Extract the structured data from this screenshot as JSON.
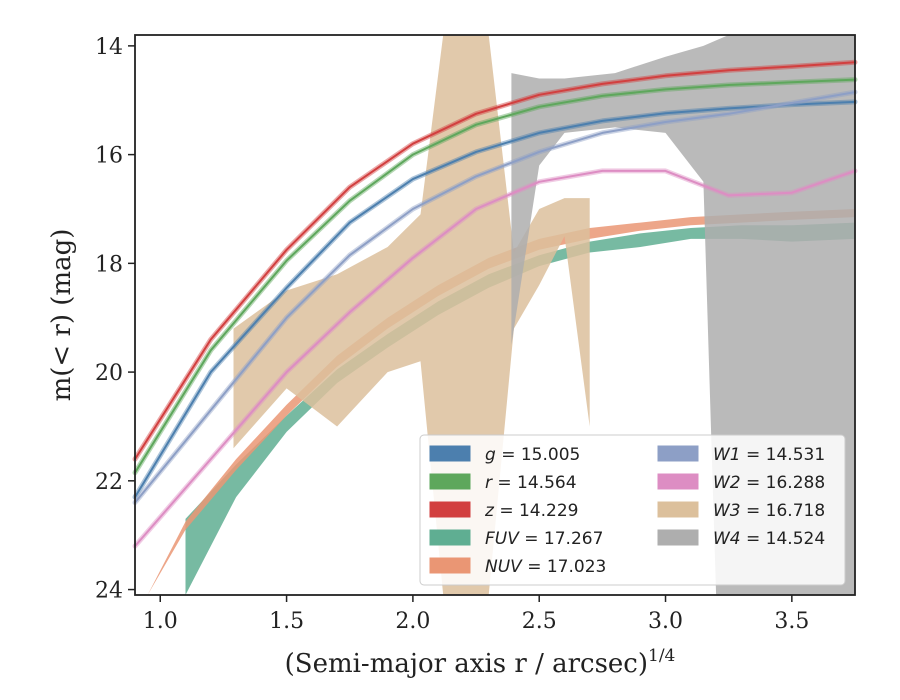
{
  "chart_data": {
    "type": "line",
    "xlabel": "(Semi-major axis r / arcsec)",
    "xlabel_exponent": "1/4",
    "ylabel": "m(< r) (mag)",
    "xlim": [
      0.9,
      3.75
    ],
    "ylim": [
      24.1,
      13.8
    ],
    "y_inverted": true,
    "x_ticks": [
      1.0,
      1.5,
      2.0,
      2.5,
      3.0,
      3.5
    ],
    "y_ticks": [
      14,
      16,
      18,
      20,
      22,
      24
    ],
    "x_tick_labels": [
      "1.0",
      "1.5",
      "2.0",
      "2.5",
      "3.0",
      "3.5"
    ],
    "y_tick_labels": [
      "14",
      "16",
      "18",
      "20",
      "22",
      "24"
    ],
    "grid": false,
    "legend_position": "lower-right",
    "series": [
      {
        "name": "g",
        "label": "g = 15.005",
        "color": "#4c7fae",
        "style": "model-band",
        "x": [
          0.9,
          1.2,
          1.5,
          1.75,
          2.0,
          2.25,
          2.5,
          2.75,
          3.0,
          3.25,
          3.5,
          3.75
        ],
        "y": [
          22.3,
          20.0,
          18.45,
          17.25,
          16.45,
          15.95,
          15.6,
          15.38,
          15.24,
          15.15,
          15.08,
          15.03
        ]
      },
      {
        "name": "r",
        "label": "r = 14.564",
        "color": "#5ea75c",
        "style": "model-band",
        "x": [
          0.9,
          1.2,
          1.5,
          1.75,
          2.0,
          2.25,
          2.5,
          2.75,
          3.0,
          3.25,
          3.5,
          3.75
        ],
        "y": [
          21.85,
          19.6,
          17.95,
          16.85,
          16.0,
          15.45,
          15.12,
          14.92,
          14.8,
          14.72,
          14.67,
          14.62
        ]
      },
      {
        "name": "z",
        "label": "z = 14.229",
        "color": "#d23f3f",
        "style": "model-band",
        "x": [
          0.9,
          1.2,
          1.5,
          1.75,
          2.0,
          2.25,
          2.5,
          2.75,
          3.0,
          3.25,
          3.5,
          3.75
        ],
        "y": [
          21.6,
          19.4,
          17.75,
          16.6,
          15.8,
          15.25,
          14.9,
          14.7,
          14.55,
          14.45,
          14.38,
          14.3
        ]
      },
      {
        "name": "FUV",
        "label": "FUV = 17.267",
        "color": "#5fae92",
        "style": "band",
        "x": [
          1.1,
          1.3,
          1.5,
          1.7,
          1.9,
          2.1,
          2.3,
          2.5,
          2.7,
          2.9,
          3.1,
          3.3,
          3.5,
          3.75
        ],
        "y_low": [
          22.7,
          21.7,
          20.8,
          19.95,
          19.3,
          18.7,
          18.2,
          17.85,
          17.6,
          17.45,
          17.35,
          17.3,
          17.3,
          17.25
        ],
        "y_high": [
          24.2,
          22.3,
          21.1,
          20.2,
          19.55,
          18.95,
          18.45,
          18.05,
          17.8,
          17.7,
          17.55,
          17.55,
          17.6,
          17.55
        ]
      },
      {
        "name": "NUV",
        "label": "NUV = 17.023",
        "color": "#ea9674",
        "style": "band",
        "x": [
          0.95,
          1.1,
          1.3,
          1.5,
          1.7,
          1.9,
          2.1,
          2.3,
          2.5,
          2.7,
          2.9,
          3.1,
          3.3,
          3.5,
          3.75
        ],
        "y_low": [
          24.2,
          22.75,
          21.6,
          20.6,
          19.7,
          19.0,
          18.4,
          17.9,
          17.55,
          17.35,
          17.25,
          17.15,
          17.1,
          17.05,
          17.0
        ],
        "y_high": [
          24.3,
          22.9,
          21.8,
          20.8,
          19.9,
          19.2,
          18.6,
          18.1,
          17.75,
          17.55,
          17.4,
          17.3,
          17.25,
          17.2,
          17.15
        ]
      },
      {
        "name": "W1",
        "label": "W1 = 14.531",
        "color": "#8d9fc6",
        "style": "model-band",
        "x": [
          0.9,
          1.2,
          1.5,
          1.75,
          2.0,
          2.25,
          2.5,
          2.75,
          3.0,
          3.25,
          3.5,
          3.75
        ],
        "y": [
          22.4,
          20.7,
          19.0,
          17.85,
          17.0,
          16.4,
          15.95,
          15.6,
          15.4,
          15.25,
          15.05,
          14.85
        ]
      },
      {
        "name": "W2",
        "label": "W2 = 16.288",
        "color": "#dd8dc3",
        "style": "model-band",
        "x": [
          0.9,
          1.2,
          1.5,
          1.75,
          2.0,
          2.25,
          2.5,
          2.75,
          3.0,
          3.25,
          3.5,
          3.75
        ],
        "y": [
          23.2,
          21.6,
          20.0,
          18.9,
          17.9,
          17.0,
          16.5,
          16.3,
          16.3,
          16.75,
          16.7,
          16.3
        ]
      },
      {
        "name": "W3",
        "label": "W3 = 16.718",
        "color": "#dcc09c",
        "style": "band",
        "x": [
          1.29,
          1.5,
          1.7,
          1.9,
          2.03,
          2.12,
          2.3,
          2.4,
          2.5,
          2.6,
          2.7
        ],
        "y_low": [
          19.2,
          18.5,
          18.2,
          17.7,
          17.1,
          13.8,
          13.8,
          17.8,
          17.0,
          16.8,
          16.8
        ],
        "y_high": [
          21.4,
          20.3,
          21.0,
          20.0,
          19.8,
          24.1,
          24.1,
          19.2,
          18.4,
          17.5,
          21.0
        ]
      },
      {
        "name": "W4",
        "label": "W4 = 14.524",
        "color": "#aeaeae",
        "style": "band",
        "x": [
          2.39,
          2.5,
          2.6,
          2.8,
          3.0,
          3.15,
          3.2,
          3.25,
          3.5,
          3.75
        ],
        "y_low": [
          14.5,
          14.6,
          14.6,
          14.5,
          14.2,
          14.0,
          13.9,
          13.8,
          13.8,
          13.8
        ],
        "y_high": [
          19.5,
          16.2,
          15.6,
          15.5,
          15.6,
          16.5,
          24.1,
          24.1,
          24.1,
          24.1
        ]
      }
    ],
    "legend": [
      {
        "name": "g",
        "value": "15.005",
        "color": "#4c7fae"
      },
      {
        "name": "r",
        "value": "14.564",
        "color": "#5ea75c"
      },
      {
        "name": "z",
        "value": "14.229",
        "color": "#d23f3f"
      },
      {
        "name": "FUV",
        "value": "17.267",
        "color": "#5fae92"
      },
      {
        "name": "NUV",
        "value": "17.023",
        "color": "#ea9674"
      },
      {
        "name": "W1",
        "value": "14.531",
        "color": "#8d9fc6"
      },
      {
        "name": "W2",
        "value": "16.288",
        "color": "#dd8dc3"
      },
      {
        "name": "W3",
        "value": "16.718",
        "color": "#dcc09c"
      },
      {
        "name": "W4",
        "value": "14.524",
        "color": "#aeaeae"
      }
    ]
  }
}
